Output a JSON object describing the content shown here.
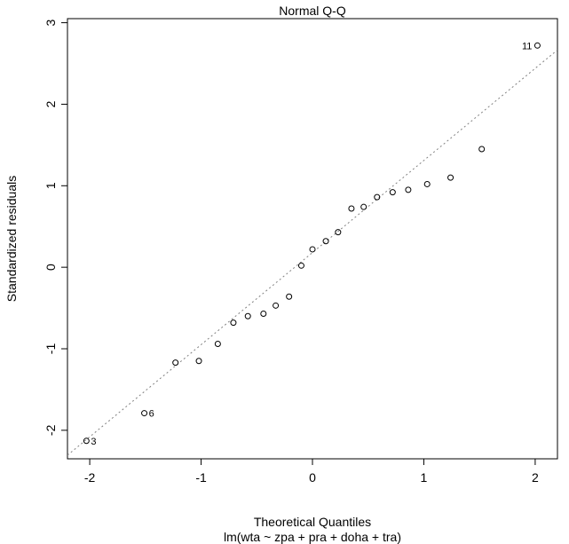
{
  "chart_data": {
    "type": "scatter",
    "title": "Normal Q-Q",
    "xlabel": "Theoretical Quantiles",
    "subtitle": "lm(wta ~ zpa + pra + doha + tra)",
    "ylabel": "Standardized residuals",
    "xlim": [
      -2.2,
      2.2
    ],
    "ylim": [
      -2.35,
      3.05
    ],
    "x_ticks": [
      -2,
      -1,
      0,
      1,
      2
    ],
    "x_tick_labels": [
      "-2",
      "-1",
      "0",
      "1",
      "2"
    ],
    "y_ticks": [
      -2,
      -1,
      0,
      1,
      2,
      3
    ],
    "y_tick_labels": [
      "-2",
      "-1",
      "0",
      "1",
      "2",
      "3"
    ],
    "grid": false,
    "reference_line": {
      "slope": 1.13,
      "intercept": 0.18,
      "style": "dotted",
      "color": "#808080"
    },
    "points": [
      {
        "x": -2.03,
        "y": -2.13,
        "label": "3"
      },
      {
        "x": -1.51,
        "y": -1.79,
        "label": "6"
      },
      {
        "x": -1.23,
        "y": -1.17
      },
      {
        "x": -1.02,
        "y": -1.15
      },
      {
        "x": -0.85,
        "y": -0.94
      },
      {
        "x": -0.71,
        "y": -0.68
      },
      {
        "x": -0.58,
        "y": -0.6
      },
      {
        "x": -0.44,
        "y": -0.57
      },
      {
        "x": -0.33,
        "y": -0.47
      },
      {
        "x": -0.21,
        "y": -0.36
      },
      {
        "x": -0.1,
        "y": 0.02
      },
      {
        "x": 0.0,
        "y": 0.22
      },
      {
        "x": 0.12,
        "y": 0.32
      },
      {
        "x": 0.23,
        "y": 0.43
      },
      {
        "x": 0.35,
        "y": 0.72
      },
      {
        "x": 0.46,
        "y": 0.74
      },
      {
        "x": 0.58,
        "y": 0.86
      },
      {
        "x": 0.72,
        "y": 0.92
      },
      {
        "x": 0.86,
        "y": 0.95
      },
      {
        "x": 1.03,
        "y": 1.02
      },
      {
        "x": 1.24,
        "y": 1.1
      },
      {
        "x": 1.52,
        "y": 1.45
      },
      {
        "x": 2.02,
        "y": 2.72,
        "label": "11"
      }
    ]
  }
}
